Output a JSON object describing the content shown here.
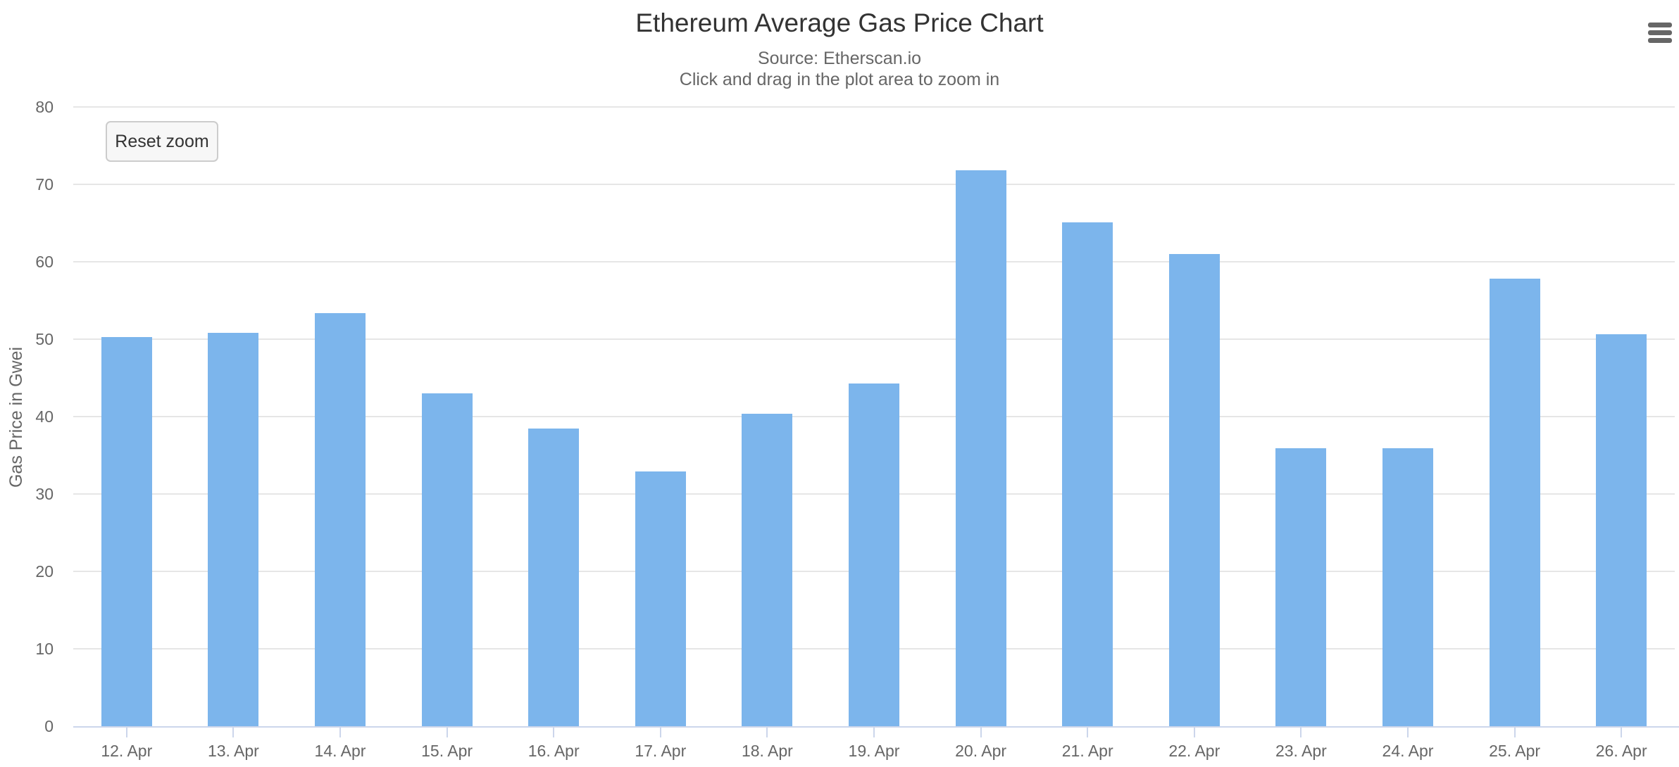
{
  "title": "Ethereum Average Gas Price Chart",
  "subtitle": [
    "Source: Etherscan.io",
    "Click and drag in the plot area to zoom in"
  ],
  "buttons": {
    "reset_zoom": "Reset zoom"
  },
  "icons": {
    "context_menu": "hamburger-icon"
  },
  "colors": {
    "bar": "#7cb5ec",
    "grid": "#e6e6e6",
    "axis_line": "#ccd6eb",
    "title_text": "#333333",
    "muted_text": "#666666",
    "button_bg": "#f7f7f7",
    "button_border": "#cccccc",
    "background": "#ffffff"
  },
  "chart_data": {
    "type": "bar",
    "title": "Ethereum Average Gas Price Chart",
    "subtitle": "Source: Etherscan.io",
    "categories": [
      "12. Apr",
      "13. Apr",
      "14. Apr",
      "15. Apr",
      "16. Apr",
      "17. Apr",
      "18. Apr",
      "19. Apr",
      "20. Apr",
      "21. Apr",
      "22. Apr",
      "23. Apr",
      "24. Apr",
      "25. Apr",
      "26. Apr"
    ],
    "values": [
      50.3,
      50.8,
      53.4,
      43.0,
      38.5,
      32.9,
      40.4,
      44.3,
      71.8,
      65.1,
      61.0,
      35.9,
      35.9,
      57.8,
      50.6
    ],
    "xlabel": "",
    "ylabel": "Gas Price in Gwei",
    "ylim": [
      0,
      80
    ],
    "ytick_interval": 10,
    "yticks": [
      0,
      10,
      20,
      30,
      40,
      50,
      60,
      70,
      80
    ],
    "grid": true,
    "legend": false
  }
}
